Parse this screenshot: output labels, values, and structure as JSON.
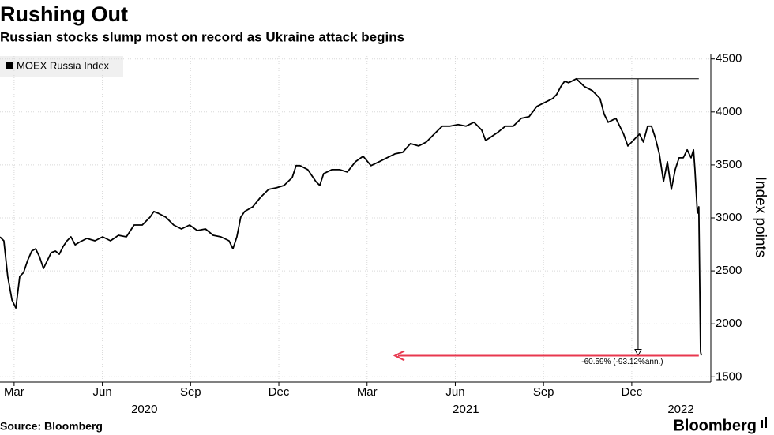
{
  "chart_data": {
    "type": "line",
    "title": "Rushing Out",
    "subtitle": "Russian stocks slump most on record as Ukraine attack begins",
    "y_axis_label": "Index points",
    "source": "Source: Bloomberg",
    "brand": "Bloomberg",
    "x": [
      2020.168,
      2020.179,
      2020.19,
      2020.202,
      2020.213,
      2020.224,
      2020.235,
      2020.246,
      2020.258,
      2020.269,
      2020.28,
      2020.291,
      2020.302,
      2020.313,
      2020.325,
      2020.336,
      2020.347,
      2020.358,
      2020.369,
      2020.381,
      2020.392,
      2020.414,
      2020.437,
      2020.459,
      2020.481,
      2020.504,
      2020.526,
      2020.548,
      2020.571,
      2020.593,
      2020.604,
      2020.616,
      2020.638,
      2020.66,
      2020.682,
      2020.705,
      2020.727,
      2020.75,
      2020.772,
      2020.794,
      2020.817,
      2020.828,
      2020.839,
      2020.85,
      2020.861,
      2020.884,
      2020.906,
      2020.929,
      2020.951,
      2020.973,
      2020.996,
      2021.007,
      2021.018,
      2021.04,
      2021.063,
      2021.074,
      2021.085,
      2021.108,
      2021.13,
      2021.152,
      2021.175,
      2021.197,
      2021.219,
      2021.242,
      2021.264,
      2021.287,
      2021.309,
      2021.331,
      2021.354,
      2021.376,
      2021.398,
      2021.421,
      2021.443,
      2021.466,
      2021.488,
      2021.511,
      2021.533,
      2021.544,
      2021.555,
      2021.578,
      2021.6,
      2021.622,
      2021.645,
      2021.667,
      2021.689,
      2021.712,
      2021.734,
      2021.745,
      2021.757,
      2021.768,
      2021.779,
      2021.801,
      2021.824,
      2021.846,
      2021.868,
      2021.88,
      2021.891,
      2021.913,
      2021.935,
      2021.947,
      2021.958,
      2021.969,
      2021.98,
      2021.991,
      2022.003,
      2022.014,
      2022.025,
      2022.036,
      2022.048,
      2022.059,
      2022.07,
      2022.081,
      2022.092,
      2022.104,
      2022.115,
      2022.126,
      2022.133,
      2022.137,
      2022.144,
      2022.148,
      2022.153,
      2022.155
    ],
    "series": [
      {
        "name": "MOEX Russia Index",
        "color": "#000000",
        "values": [
          2820,
          2784,
          2448,
          2224,
          2150,
          2448,
          2485,
          2597,
          2687,
          2709,
          2634,
          2522,
          2597,
          2672,
          2687,
          2657,
          2731,
          2784,
          2821,
          2746,
          2769,
          2806,
          2784,
          2821,
          2784,
          2836,
          2821,
          2933,
          2933,
          3007,
          3060,
          3045,
          3007,
          2933,
          2896,
          2933,
          2881,
          2896,
          2836,
          2821,
          2784,
          2709,
          2821,
          3007,
          3060,
          3104,
          3194,
          3269,
          3284,
          3306,
          3381,
          3493,
          3493,
          3455,
          3343,
          3306,
          3418,
          3455,
          3455,
          3433,
          3530,
          3582,
          3493,
          3530,
          3567,
          3604,
          3619,
          3701,
          3679,
          3716,
          3791,
          3866,
          3866,
          3881,
          3866,
          3903,
          3828,
          3731,
          3754,
          3806,
          3866,
          3866,
          3940,
          3955,
          4052,
          4090,
          4127,
          4164,
          4239,
          4291,
          4276,
          4313,
          4239,
          4201,
          4127,
          3978,
          3903,
          3940,
          3791,
          3679,
          3716,
          3754,
          3791,
          3716,
          3866,
          3866,
          3754,
          3604,
          3343,
          3530,
          3269,
          3455,
          3567,
          3567,
          3642,
          3567,
          3642,
          3455,
          3045,
          3104,
          1739,
          1702
        ]
      }
    ],
    "xlim": [
      2020.168,
      2022.182
    ],
    "xticks": [
      {
        "value": 2020.208,
        "label": "Mar"
      },
      {
        "value": 2020.458,
        "label": "Jun"
      },
      {
        "value": 2020.708,
        "label": "Sep"
      },
      {
        "value": 2020.958,
        "label": "Dec"
      },
      {
        "value": 2021.208,
        "label": "Mar"
      },
      {
        "value": 2021.458,
        "label": "Jun"
      },
      {
        "value": 2021.708,
        "label": "Sep"
      },
      {
        "value": 2021.958,
        "label": "Dec"
      }
    ],
    "year_labels": [
      {
        "value": 2020.577,
        "label": "2020"
      },
      {
        "value": 2021.488,
        "label": "2021"
      },
      {
        "value": 2022.097,
        "label": "2022"
      }
    ],
    "ylim": [
      1450,
      4550
    ],
    "yticks": [
      1500,
      2000,
      2500,
      3000,
      3500,
      4000,
      4500
    ],
    "grid": true,
    "legend": "top-left",
    "annotation": {
      "text": "-60.59% (-93.12%ann.)",
      "high": 4313,
      "low": 1700,
      "x_start": 2021.801,
      "x_marker": 2021.976,
      "x_end": 2022.148,
      "x_arrow_end": 2021.287,
      "color": "#e8384f"
    }
  }
}
